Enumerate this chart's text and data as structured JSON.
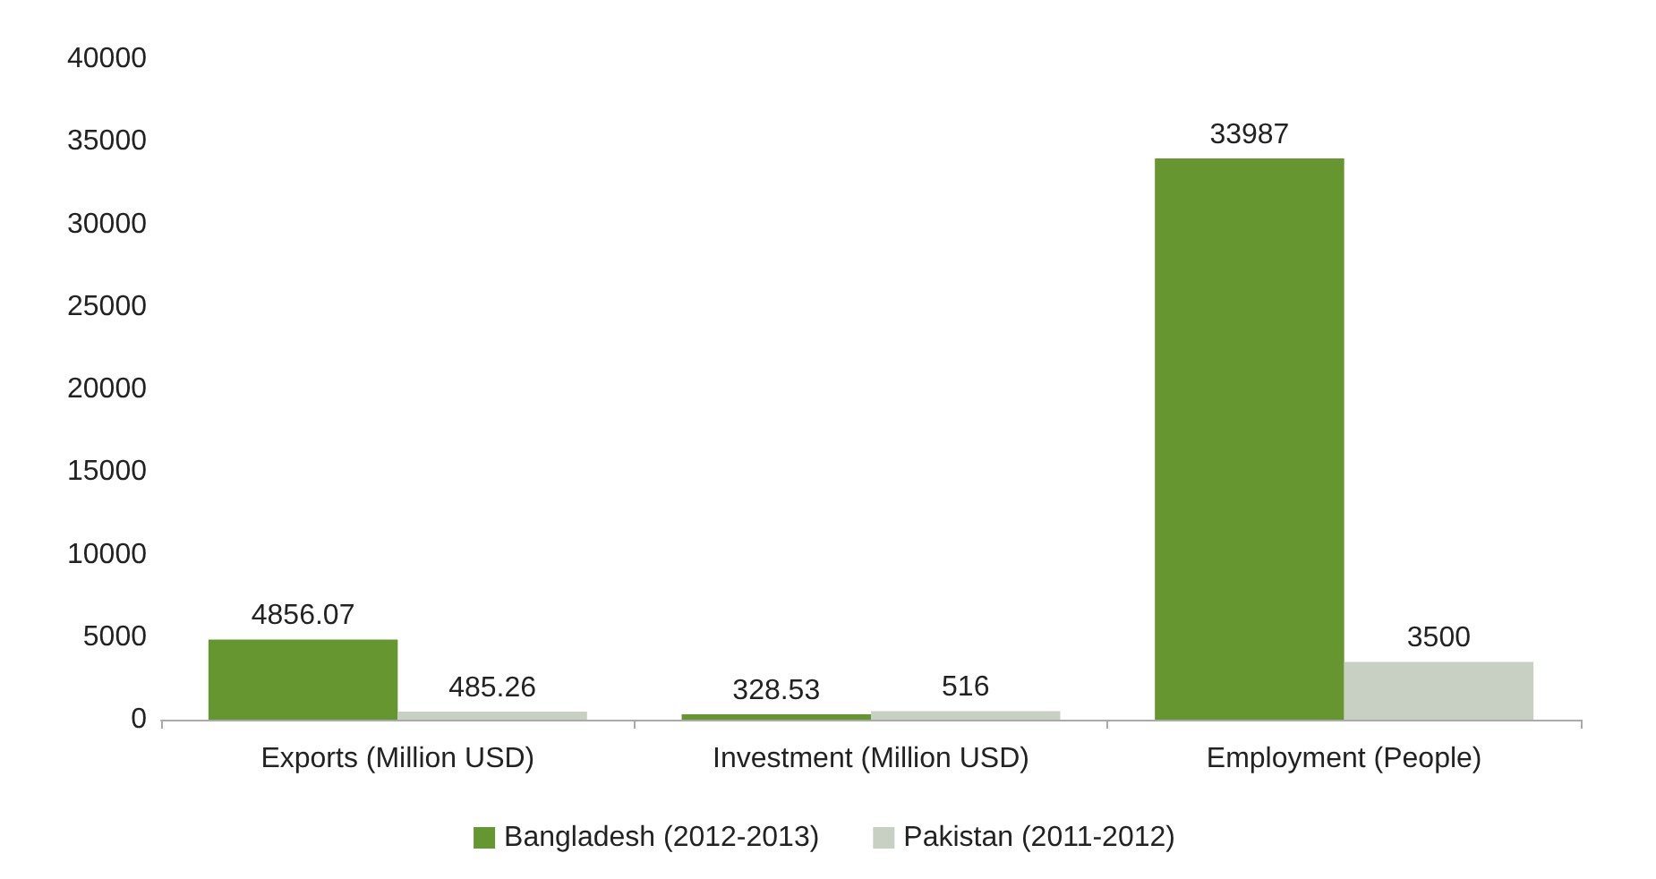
{
  "chart_data": {
    "type": "bar",
    "categories": [
      "Exports (Million USD)",
      "Investment (Million USD)",
      "Employment (People)"
    ],
    "series": [
      {
        "name": "Bangladesh (2012-2013)",
        "color": "#66962f",
        "values": [
          4856.07,
          328.53,
          33987
        ]
      },
      {
        "name": "Pakistan (2011-2012)",
        "color": "#c8d0c4",
        "values": [
          485.26,
          516,
          3500
        ]
      }
    ],
    "ylim": [
      0,
      40000
    ],
    "yticks": [
      0,
      5000,
      10000,
      15000,
      20000,
      25000,
      30000,
      35000,
      40000
    ],
    "grid": false,
    "legend": "bottom",
    "data_labels": true
  }
}
